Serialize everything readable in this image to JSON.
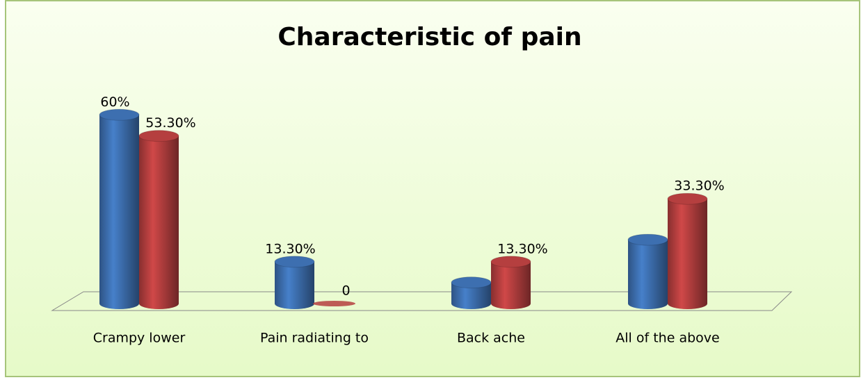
{
  "chart_data": {
    "type": "bar3d",
    "title": "Characteristic of pain",
    "categories": [
      "Crampy lower",
      "Pain radiating to",
      "Back ache",
      "All of the above"
    ],
    "series": [
      {
        "color": "#3d6fb0",
        "values": [
          60,
          13.3,
          6.7,
          20.3
        ],
        "value_labels": [
          "60%",
          "13.30%",
          null,
          null
        ]
      },
      {
        "color": "#b53f3f",
        "values": [
          53.3,
          0,
          13.3,
          33.3
        ],
        "value_labels": [
          "53.30%",
          "0",
          "13.30%",
          "33.30%"
        ]
      }
    ],
    "ylim": [
      0,
      70
    ]
  }
}
